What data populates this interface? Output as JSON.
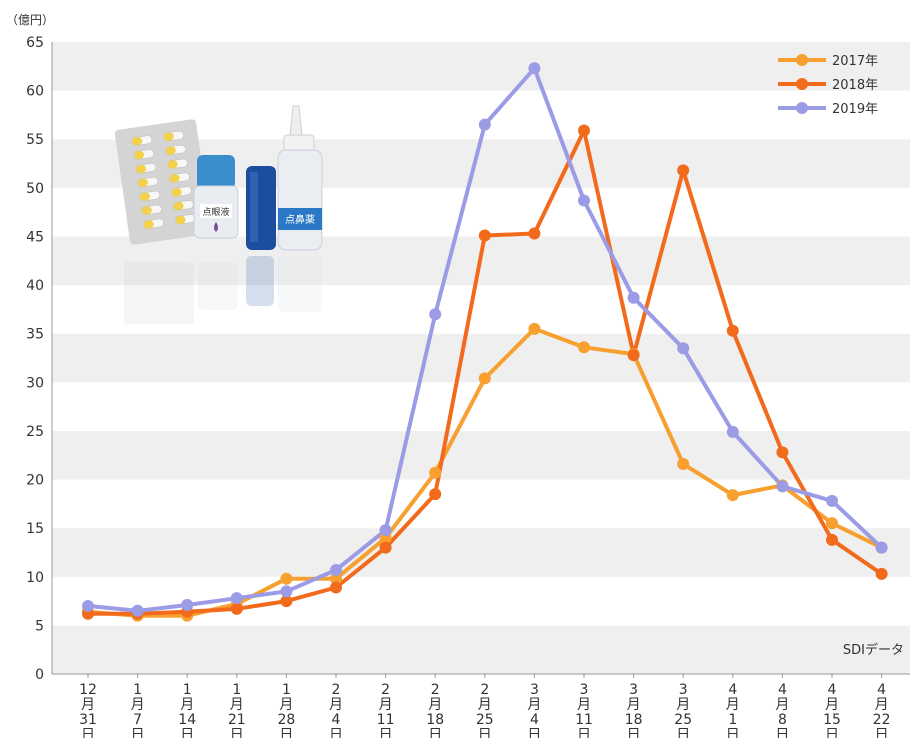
{
  "chart_data": {
    "type": "line",
    "unit_label": "（億円）",
    "source_label": "SDIデータ",
    "ylim": [
      0,
      65
    ],
    "y_ticks": [
      0,
      5,
      10,
      15,
      20,
      25,
      30,
      35,
      40,
      45,
      50,
      55,
      60,
      65
    ],
    "categories": [
      [
        "12",
        "月",
        "31",
        "日"
      ],
      [
        "1",
        "月",
        "7",
        "日"
      ],
      [
        "1",
        "月",
        "14",
        "日"
      ],
      [
        "1",
        "月",
        "21",
        "日"
      ],
      [
        "1",
        "月",
        "28",
        "日"
      ],
      [
        "2",
        "月",
        "4",
        "日"
      ],
      [
        "2",
        "月",
        "11",
        "日"
      ],
      [
        "2",
        "月",
        "18",
        "日"
      ],
      [
        "2",
        "月",
        "25",
        "日"
      ],
      [
        "3",
        "月",
        "4",
        "日"
      ],
      [
        "3",
        "月",
        "11",
        "日"
      ],
      [
        "3",
        "月",
        "18",
        "日"
      ],
      [
        "3",
        "月",
        "25",
        "日"
      ],
      [
        "4",
        "月",
        "1",
        "日"
      ],
      [
        "4",
        "月",
        "8",
        "日"
      ],
      [
        "4",
        "月",
        "15",
        "日"
      ],
      [
        "4",
        "月",
        "22",
        "日"
      ]
    ],
    "series": [
      {
        "name": "2017年",
        "color": "#f7a030",
        "values": [
          6.4,
          6.0,
          6.0,
          7.2,
          9.8,
          9.8,
          14.0,
          20.7,
          30.4,
          35.5,
          33.6,
          32.9,
          21.6,
          18.4,
          19.4,
          15.5,
          13.0
        ]
      },
      {
        "name": "2018年",
        "color": "#f26a1b",
        "values": [
          6.2,
          6.2,
          6.4,
          6.7,
          7.5,
          8.9,
          13.0,
          18.5,
          45.1,
          45.3,
          55.9,
          32.8,
          51.8,
          35.3,
          22.8,
          13.8,
          10.3
        ]
      },
      {
        "name": "2019年",
        "color": "#9b9be6",
        "values": [
          7.0,
          6.5,
          7.1,
          7.8,
          8.5,
          10.7,
          14.8,
          37.0,
          56.5,
          62.3,
          48.7,
          38.7,
          33.5,
          24.9,
          19.3,
          17.8,
          13.0
        ]
      }
    ],
    "legend_position": "top-right",
    "grid": "horizontal-bands"
  },
  "illustration": {
    "eye_drop_label": "点眼液",
    "nasal_spray_label": "点鼻薬"
  }
}
